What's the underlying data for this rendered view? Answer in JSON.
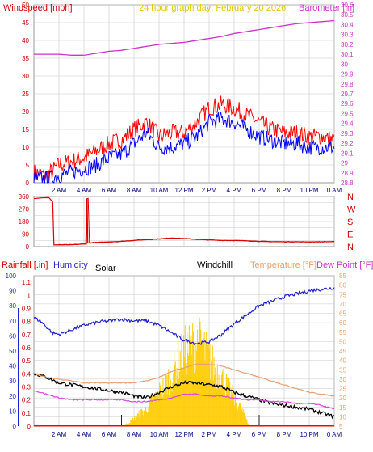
{
  "colors": {
    "wind_gust": "#ff0000",
    "wind_avg": "#0000ff",
    "barometer": "#cc33cc",
    "direction": "#dd0000",
    "humidity": "#2222cc",
    "solar": "#ffcc00",
    "windchill": "#000000",
    "temperature": "#e8a070",
    "dew_point": "#dd44dd",
    "rain": "#ff0000",
    "grid": "#c8c8c8"
  },
  "chart_data": [
    {
      "id": "wind-barometer",
      "type": "line",
      "title": "24 hour graph day:  February 20 2026",
      "left_axis_label": "Windspeed [mph]",
      "right_axis_label": "Barometer [in]",
      "left_ticks": [
        "0",
        "5",
        "10",
        "15",
        "20",
        "25",
        "30",
        "35",
        "40",
        "45",
        "50"
      ],
      "right_ticks": [
        "28.8",
        "28.9",
        "29",
        "29.1",
        "29.2",
        "29.3",
        "29.4",
        "29.5",
        "29.6",
        "29.7",
        "29.8",
        "29.9",
        "30",
        "30.1",
        "30.2",
        "30.3",
        "30.4",
        "30.5",
        "30.6"
      ],
      "x_ticks": [
        "2 AM",
        "4 AM",
        "6 AM",
        "8 AM",
        "10 AM",
        "12 PM",
        "2 PM",
        "4 PM",
        "6 PM",
        "8 PM",
        "10 PM",
        "0 AM"
      ],
      "ylim_left": [
        0,
        50
      ],
      "ylim_right": [
        28.8,
        30.6
      ],
      "xlim_hours": [
        0,
        24
      ],
      "grid": true,
      "series": [
        {
          "key": "wind_gust",
          "axis": "left",
          "x": [
            0,
            1,
            2,
            3,
            4,
            5,
            6,
            7,
            8,
            9,
            10,
            11,
            12,
            13,
            14,
            15,
            16,
            17,
            18,
            19,
            20,
            21,
            22,
            23,
            24
          ],
          "y": [
            3,
            2,
            5,
            6,
            7,
            9,
            11,
            12,
            15,
            17,
            13,
            14,
            14,
            17,
            21,
            22,
            21,
            19,
            17,
            15,
            14,
            14,
            13,
            13,
            12
          ]
        },
        {
          "key": "wind_avg",
          "axis": "left",
          "x": [
            0,
            1,
            2,
            3,
            4,
            5,
            6,
            7,
            8,
            9,
            10,
            11,
            12,
            13,
            14,
            15,
            16,
            17,
            18,
            19,
            20,
            21,
            22,
            23,
            24
          ],
          "y": [
            1,
            1,
            2,
            3,
            4,
            5,
            7,
            8,
            11,
            14,
            10,
            10,
            11,
            13,
            17,
            18,
            17,
            15,
            13,
            12,
            11,
            11,
            10,
            10,
            10
          ]
        },
        {
          "name": "Barometer",
          "key": "barometer",
          "axis": "right",
          "x": [
            0,
            1,
            2,
            3,
            4,
            5,
            6,
            7,
            8,
            9,
            10,
            11,
            12,
            13,
            14,
            15,
            16,
            17,
            18,
            19,
            20,
            21,
            22,
            23,
            24
          ],
          "y": [
            30.1,
            30.1,
            30.1,
            30.09,
            30.09,
            30.11,
            30.13,
            30.14,
            30.16,
            30.18,
            30.2,
            30.21,
            30.22,
            30.24,
            30.26,
            30.28,
            30.31,
            30.33,
            30.35,
            30.37,
            30.39,
            30.41,
            30.42,
            30.43,
            30.44
          ]
        }
      ]
    },
    {
      "id": "wind-direction",
      "type": "line",
      "left_ticks": [
        "0",
        "45",
        "90",
        "135",
        "180",
        "225",
        "270",
        "315",
        "360"
      ],
      "right_labels": [
        "N",
        "W",
        "S",
        "E",
        "N"
      ],
      "ylim": [
        0,
        360
      ],
      "xlim_hours": [
        0,
        24
      ],
      "grid": true,
      "series": [
        {
          "key": "direction",
          "x": [
            0,
            0.6,
            1.2,
            1.5,
            1.6,
            3,
            4.2,
            4.25,
            4.3,
            5,
            6,
            7,
            8,
            9,
            10,
            11,
            12,
            13,
            14,
            15,
            16,
            17,
            18,
            19,
            20,
            21,
            22,
            23,
            24
          ],
          "y": [
            345,
            350,
            352,
            320,
            12,
            14,
            20,
            345,
            26,
            30,
            34,
            38,
            45,
            50,
            55,
            62,
            58,
            52,
            48,
            45,
            44,
            42,
            38,
            36,
            35,
            35,
            34,
            35,
            36
          ]
        }
      ]
    },
    {
      "id": "weather-multi",
      "type": "line",
      "labels": {
        "rainfall": "Rainfall [.in]",
        "humidity": "Humidity",
        "solar": "Solar",
        "windchill": "Windchill",
        "temperature": "Temperature [°F]",
        "dew_point": "Dew Point [°F]"
      },
      "left_ticks_humidity": [
        "0",
        "10",
        "20",
        "30",
        "40",
        "50",
        "60",
        "70",
        "80",
        "90",
        "100"
      ],
      "left_ticks_rain": [
        "0",
        "0.1",
        "0.2",
        "0.3",
        "0.4",
        "0.5",
        "0.6",
        "0.7",
        "0.8",
        "0.9",
        "1",
        "1.1"
      ],
      "right_ticks": [
        "5",
        "10",
        "15",
        "20",
        "25",
        "30",
        "35",
        "40",
        "45",
        "50",
        "55",
        "60",
        "65",
        "70",
        "75",
        "80",
        "85"
      ],
      "x_ticks": [
        "2 AM",
        "4 AM",
        "6 AM",
        "8 AM",
        "10 AM",
        "12 PM",
        "2 PM",
        "4 PM",
        "6 PM",
        "8 PM",
        "10 PM",
        "0 AM"
      ],
      "ylim_humidity": [
        0,
        100
      ],
      "ylim_temp": [
        5,
        85
      ],
      "xlim_hours": [
        0,
        24
      ],
      "grid": true,
      "series": [
        {
          "key": "humidity",
          "x": [
            0,
            0.5,
            1,
            1.5,
            2,
            3,
            4,
            5,
            6,
            7,
            8,
            9,
            10,
            11,
            12,
            13,
            14,
            15,
            16,
            17,
            18,
            19,
            20,
            21,
            22,
            23,
            24
          ],
          "y": [
            72,
            70,
            66,
            62,
            61,
            64,
            67,
            69,
            70,
            71,
            70,
            70,
            67,
            62,
            57,
            55,
            56,
            61,
            68,
            74,
            80,
            83,
            86,
            88,
            90,
            91,
            92
          ]
        },
        {
          "key": "windchill",
          "x": [
            0,
            1,
            2,
            3,
            4,
            5,
            6,
            7,
            8,
            9,
            10,
            11,
            12,
            13,
            14,
            15,
            16,
            17,
            18,
            19,
            20,
            21,
            22,
            23,
            24
          ],
          "y": [
            33,
            31,
            28,
            27,
            26,
            25,
            24,
            23,
            21,
            20,
            23,
            26,
            28,
            28,
            27,
            26,
            23,
            21,
            19,
            17,
            16,
            15,
            14,
            12,
            10
          ]
        },
        {
          "name": "Temperature [°F]",
          "key": "temperature",
          "x": [
            0,
            1,
            2,
            3,
            4,
            5,
            6,
            7,
            8,
            9,
            10,
            11,
            12,
            13,
            14,
            15,
            16,
            17,
            18,
            19,
            20,
            21,
            22,
            23,
            24
          ],
          "y": [
            33,
            31,
            30,
            29,
            28,
            28,
            28,
            28,
            28,
            29,
            31,
            34,
            36,
            38,
            38,
            37,
            35,
            33,
            31,
            29,
            27,
            25,
            23,
            22,
            21
          ]
        },
        {
          "name": "Dew Point [°F]",
          "key": "dew_point",
          "x": [
            0,
            1,
            2,
            3,
            4,
            5,
            6,
            7,
            8,
            9,
            10,
            11,
            12,
            13,
            14,
            15,
            16,
            17,
            18,
            19,
            20,
            21,
            22,
            23,
            24
          ],
          "y": [
            24,
            22,
            20,
            19,
            19,
            19,
            19,
            19,
            18,
            18,
            19,
            20,
            22,
            22,
            21,
            21,
            20,
            19,
            19,
            18,
            18,
            17,
            17,
            16,
            14
          ]
        },
        {
          "key": "solar",
          "x": [
            6.8,
            7.5,
            8,
            9,
            10,
            11,
            11.5,
            12,
            12.5,
            13,
            13.5,
            14,
            15,
            16,
            17,
            17.2
          ],
          "y": [
            0,
            2,
            6,
            14,
            26,
            40,
            50,
            58,
            62,
            66,
            62,
            52,
            38,
            22,
            6,
            0
          ]
        },
        {
          "key": "rain",
          "x": [
            0,
            24
          ],
          "y": [
            0,
            0
          ]
        }
      ]
    }
  ]
}
